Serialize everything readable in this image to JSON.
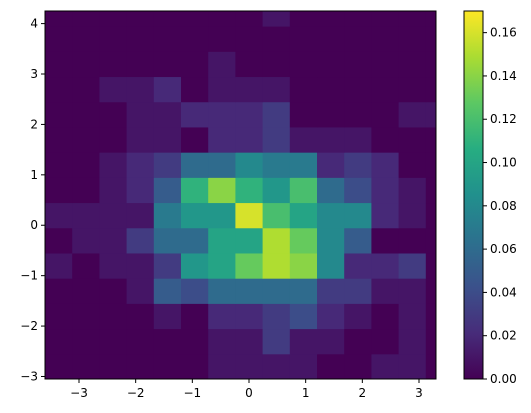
{
  "chart_data": {
    "type": "heatmap",
    "title": "",
    "xlabel": "",
    "ylabel": "",
    "x_edges": [
      -3.6,
      -3.12,
      -2.64,
      -2.16,
      -1.68,
      -1.2,
      -0.72,
      -0.24,
      0.24,
      0.72,
      1.2,
      1.68,
      2.16,
      2.64,
      3.12,
      3.6
    ],
    "y_edges": [
      -3.05,
      -2.55,
      -2.05,
      -1.55,
      -1.05,
      -0.55,
      -0.05,
      0.45,
      0.95,
      1.45,
      1.95,
      2.45,
      2.95,
      3.45,
      3.95,
      4.25
    ],
    "xlim": [
      -3.6,
      3.3
    ],
    "ylim": [
      -3.05,
      4.25
    ],
    "xticks": [
      -3,
      -2,
      -1,
      0,
      1,
      2,
      3
    ],
    "yticks": [
      -3,
      -2,
      -1,
      0,
      1,
      2,
      3,
      4
    ],
    "values": [
      [
        0.0,
        0.0,
        0.0,
        0.0,
        0.0,
        0.0,
        0.01,
        0.01,
        0.01,
        0.01,
        0.0,
        0.0,
        0.01,
        0.01,
        0.0
      ],
      [
        0.0,
        0.0,
        0.0,
        0.0,
        0.0,
        0.0,
        0.01,
        0.01,
        0.03,
        0.01,
        0.01,
        0.0,
        0.0,
        0.01,
        0.0
      ],
      [
        0.0,
        0.0,
        0.0,
        0.0,
        0.01,
        0.0,
        0.02,
        0.02,
        0.03,
        0.04,
        0.02,
        0.01,
        0.0,
        0.01,
        0.0
      ],
      [
        0.0,
        0.0,
        0.0,
        0.01,
        0.05,
        0.04,
        0.06,
        0.06,
        0.06,
        0.06,
        0.03,
        0.03,
        0.01,
        0.01,
        0.0
      ],
      [
        0.01,
        0.0,
        0.01,
        0.01,
        0.03,
        0.09,
        0.1,
        0.13,
        0.15,
        0.14,
        0.08,
        0.02,
        0.02,
        0.03,
        0.0
      ],
      [
        0.0,
        0.01,
        0.01,
        0.03,
        0.06,
        0.06,
        0.1,
        0.1,
        0.15,
        0.13,
        0.08,
        0.05,
        0.0,
        0.0,
        0.0
      ],
      [
        0.01,
        0.01,
        0.01,
        0.01,
        0.07,
        0.09,
        0.09,
        0.16,
        0.12,
        0.1,
        0.08,
        0.08,
        0.02,
        0.01,
        0.0
      ],
      [
        0.0,
        0.0,
        0.01,
        0.02,
        0.05,
        0.11,
        0.14,
        0.11,
        0.09,
        0.12,
        0.06,
        0.04,
        0.02,
        0.01,
        0.0
      ],
      [
        0.0,
        0.0,
        0.01,
        0.02,
        0.03,
        0.06,
        0.06,
        0.08,
        0.07,
        0.07,
        0.02,
        0.03,
        0.02,
        0.0,
        0.0
      ],
      [
        0.0,
        0.0,
        0.0,
        0.01,
        0.01,
        0.0,
        0.02,
        0.02,
        0.03,
        0.01,
        0.01,
        0.01,
        0.0,
        0.0,
        0.0
      ],
      [
        0.0,
        0.0,
        0.0,
        0.01,
        0.01,
        0.02,
        0.02,
        0.02,
        0.03,
        0.0,
        0.0,
        0.0,
        0.0,
        0.01,
        0.01
      ],
      [
        0.0,
        0.0,
        0.01,
        0.01,
        0.02,
        0.0,
        0.01,
        0.01,
        0.01,
        0.0,
        0.0,
        0.0,
        0.0,
        0.0,
        0.0
      ],
      [
        0.0,
        0.0,
        0.0,
        0.0,
        0.0,
        0.0,
        0.01,
        0.0,
        0.0,
        0.0,
        0.0,
        0.0,
        0.0,
        0.0,
        0.0
      ],
      [
        0.0,
        0.0,
        0.0,
        0.0,
        0.0,
        0.0,
        0.0,
        0.0,
        0.0,
        0.0,
        0.0,
        0.0,
        0.0,
        0.0,
        0.0
      ],
      [
        0.0,
        0.0,
        0.0,
        0.0,
        0.0,
        0.0,
        0.0,
        0.0,
        0.01,
        0.0,
        0.0,
        0.0,
        0.0,
        0.0,
        0.0
      ]
    ],
    "colormap": "viridis",
    "vmin": 0.0,
    "vmax": 0.17,
    "colorbar_ticks": [
      0.0,
      0.02,
      0.04,
      0.06,
      0.08,
      0.1,
      0.12,
      0.14,
      0.16
    ],
    "colorbar_tick_labels": [
      "0.00",
      "0.02",
      "0.04",
      "0.06",
      "0.08",
      "0.10",
      "0.12",
      "0.14",
      "0.16"
    ],
    "grid": false
  }
}
